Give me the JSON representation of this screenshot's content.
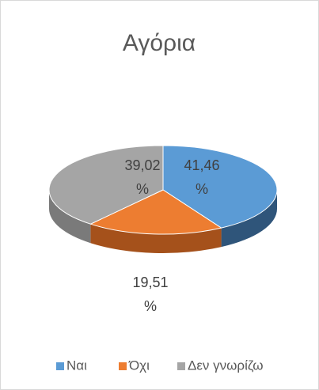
{
  "chart_data": {
    "type": "pie",
    "title": "Αγόρια",
    "categories": [
      "Ναι",
      "Όχι",
      "Δεν γνωρίζω"
    ],
    "values": [
      41.46,
      19.51,
      39.02
    ],
    "value_labels": [
      "41,46 %",
      "19,51 %",
      "39,02 %"
    ],
    "colors": [
      "#5b9bd5",
      "#ed7d31",
      "#a5a5a5"
    ],
    "side_colors": [
      "#2f557a",
      "#a5511b",
      "#7a7a7a"
    ],
    "legend": "bottom"
  }
}
